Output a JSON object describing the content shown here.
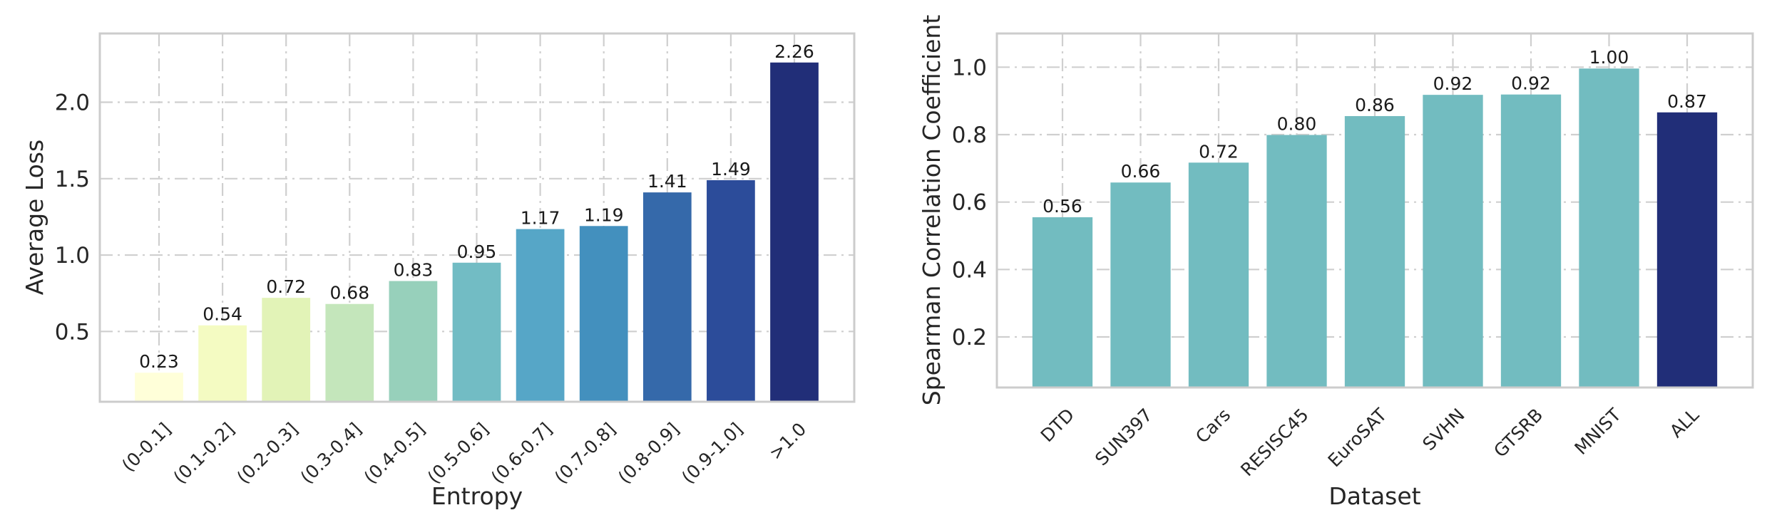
{
  "chart_data": [
    {
      "type": "bar",
      "title": "",
      "xlabel": "Entropy",
      "ylabel": "Average Loss",
      "categories": [
        "(0-0.1]",
        "(0.1-0.2]",
        "(0.2-0.3]",
        "(0.3-0.4]",
        "(0.4-0.5]",
        "(0.5-0.6]",
        "(0.6-0.7]",
        "(0.7-0.8]",
        "(0.8-0.9]",
        "(0.9-1.0]",
        ">1.0"
      ],
      "values": [
        0.23,
        0.54,
        0.72,
        0.68,
        0.83,
        0.95,
        1.17,
        1.19,
        1.41,
        1.49,
        2.26
      ],
      "value_labels": [
        "0.23",
        "0.54",
        "0.72",
        "0.68",
        "0.83",
        "0.95",
        "1.17",
        "1.19",
        "1.41",
        "1.49",
        "2.26"
      ],
      "colors": [
        "#ffffd9",
        "#f4fbc2",
        "#e2f3b7",
        "#c4e6bb",
        "#97d0bb",
        "#72bcc4",
        "#56a6c7",
        "#4390be",
        "#3569aa",
        "#2c4c9a",
        "#212e78"
      ],
      "yticks": [
        0.5,
        1.0,
        1.5,
        2.0
      ],
      "ytick_labels": [
        "0.5",
        "1.0",
        "1.5",
        "2.0"
      ],
      "ylim": [
        0.04,
        2.45
      ],
      "grid": true,
      "legend": "none"
    },
    {
      "type": "bar",
      "title": "",
      "xlabel": "Dataset",
      "ylabel": "Spearman Correlation Coefficient",
      "categories": [
        "DTD",
        "SUN397",
        "Cars",
        "RESISC45",
        "EuroSAT",
        "SVHN",
        "GTSRB",
        "MNIST",
        "ALL"
      ],
      "values": [
        0.555,
        0.658,
        0.717,
        0.799,
        0.855,
        0.918,
        0.919,
        0.996,
        0.866
      ],
      "value_labels": [
        "0.56",
        "0.66",
        "0.72",
        "0.80",
        "0.86",
        "0.92",
        "0.92",
        "1.00",
        "0.87"
      ],
      "colors": [
        "#72bcc0",
        "#72bcc0",
        "#72bcc0",
        "#72bcc0",
        "#72bcc0",
        "#72bcc0",
        "#72bcc0",
        "#72bcc0",
        "#212e78"
      ],
      "yticks": [
        0.2,
        0.4,
        0.6,
        0.8,
        1.0
      ],
      "ytick_labels": [
        "0.2",
        "0.4",
        "0.6",
        "0.8",
        "1.0"
      ],
      "ylim": [
        0.05,
        1.1
      ],
      "grid": true,
      "legend": "none"
    }
  ]
}
